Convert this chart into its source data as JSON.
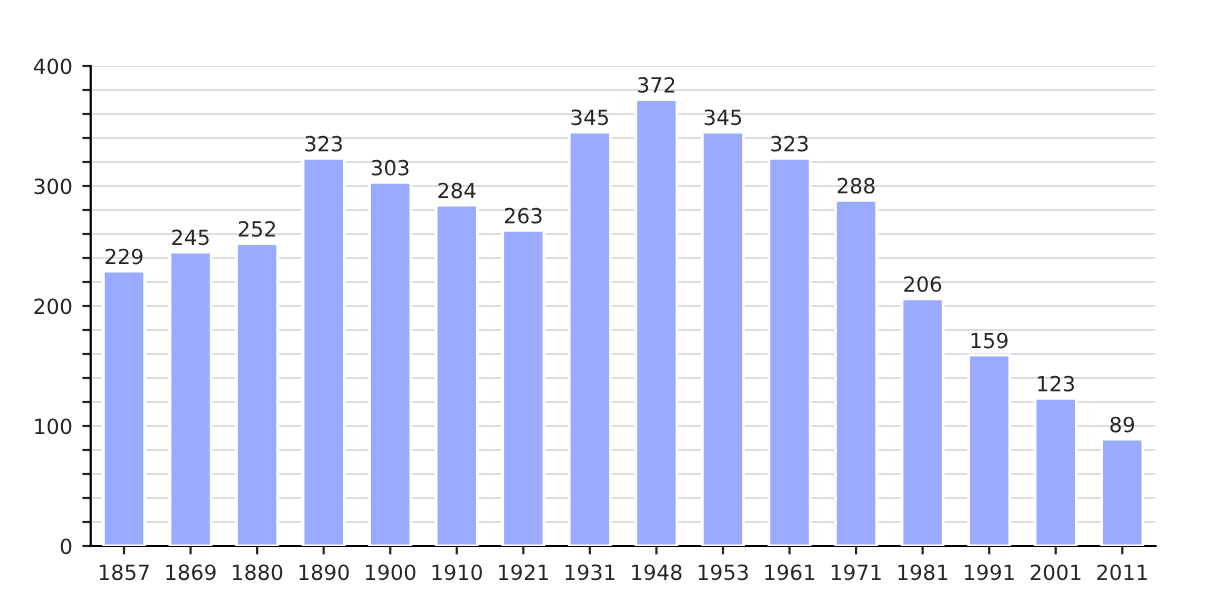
{
  "chart_data": {
    "type": "bar",
    "categories": [
      "1857",
      "1869",
      "1880",
      "1890",
      "1900",
      "1910",
      "1921",
      "1931",
      "1948",
      "1953",
      "1961",
      "1971",
      "1981",
      "1991",
      "2001",
      "2011"
    ],
    "values": [
      229,
      245,
      252,
      323,
      303,
      284,
      263,
      345,
      372,
      345,
      323,
      288,
      206,
      159,
      123,
      89
    ],
    "color": "#99aaff",
    "ylim": [
      0,
      400
    ],
    "yticks": [
      0,
      {
        "value": 20,
        "label": null
      },
      {
        "value": 40,
        "label": null
      },
      {
        "value": 60,
        "label": null
      },
      {
        "value": 80,
        "label": null
      },
      100,
      {
        "value": 120,
        "label": null
      },
      {
        "value": 140,
        "label": null
      },
      {
        "value": 160,
        "label": null
      },
      {
        "value": 180,
        "label": null
      },
      200,
      {
        "value": 220,
        "label": null
      },
      {
        "value": 240,
        "label": null
      },
      {
        "value": 260,
        "label": null
      },
      {
        "value": 280,
        "label": null
      },
      300,
      {
        "value": 320,
        "label": null
      },
      {
        "value": 340,
        "label": null
      },
      {
        "value": 360,
        "label": null
      },
      {
        "value": 380,
        "label": null
      },
      400
    ],
    "grid": "y",
    "data_labels": true
  }
}
